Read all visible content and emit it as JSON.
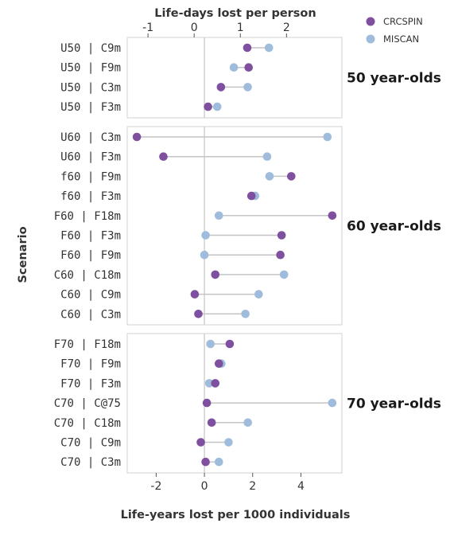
{
  "chart_data": {
    "type": "scatter",
    "top_axis": {
      "label": "Life-days lost per person",
      "ticks": [
        -1,
        0,
        1,
        2
      ],
      "tick_labels": [
        "-1",
        "0",
        "1",
        "2"
      ],
      "range": [
        -1.45,
        3.2
      ]
    },
    "bottom_axis": {
      "label": "Life-years lost per 1000 individuals",
      "ticks": [
        -2,
        0,
        2,
        4
      ],
      "tick_labels": [
        "-2",
        "0",
        "2",
        "4"
      ],
      "range": [
        -3.2,
        5.7
      ]
    },
    "ylabel": "Scenario",
    "legend": [
      {
        "name": "CRCSPIN",
        "color": "#8050a0"
      },
      {
        "name": "MISCAN",
        "color": "#a0bcdc"
      }
    ],
    "legend_position": "top-right",
    "panels": [
      {
        "label": "50 year-olds",
        "axis": "top",
        "rows": [
          {
            "scenario": "U50 | C9m",
            "CRCSPIN": 1.15,
            "MISCAN": 1.62
          },
          {
            "scenario": "U50 | F9m",
            "CRCSPIN": 1.18,
            "MISCAN": 0.86
          },
          {
            "scenario": "U50 | C3m",
            "CRCSPIN": 0.58,
            "MISCAN": 1.16
          },
          {
            "scenario": "U50 | F3m",
            "CRCSPIN": 0.3,
            "MISCAN": 0.5
          }
        ]
      },
      {
        "label": "60 year-olds",
        "axis": "bottom",
        "rows": [
          {
            "scenario": "U60 | C3m",
            "CRCSPIN": -2.8,
            "MISCAN": 5.1
          },
          {
            "scenario": "U60 | F3m",
            "CRCSPIN": -1.7,
            "MISCAN": 2.6
          },
          {
            "scenario": "f60 | F9m",
            "CRCSPIN": 3.6,
            "MISCAN": 2.7
          },
          {
            "scenario": "f60 | F3m",
            "CRCSPIN": 1.95,
            "MISCAN": 2.1
          },
          {
            "scenario": "F60 | F18m",
            "CRCSPIN": 5.3,
            "MISCAN": 0.6
          },
          {
            "scenario": "F60 | F3m",
            "CRCSPIN": 3.2,
            "MISCAN": 0.05
          },
          {
            "scenario": "F60 | F9m",
            "CRCSPIN": 3.15,
            "MISCAN": 0.0
          },
          {
            "scenario": "C60 | C18m",
            "CRCSPIN": 0.45,
            "MISCAN": 3.3
          },
          {
            "scenario": "C60 | C9m",
            "CRCSPIN": -0.4,
            "MISCAN": 2.25
          },
          {
            "scenario": "C60 | C3m",
            "CRCSPIN": -0.25,
            "MISCAN": 1.7
          }
        ]
      },
      {
        "label": "70 year-olds",
        "axis": "bottom",
        "rows": [
          {
            "scenario": "F70 | F18m",
            "CRCSPIN": 1.05,
            "MISCAN": 0.25
          },
          {
            "scenario": "F70 | F9m",
            "CRCSPIN": 0.6,
            "MISCAN": 0.7
          },
          {
            "scenario": "F70 | F3m",
            "CRCSPIN": 0.45,
            "MISCAN": 0.2
          },
          {
            "scenario": "C70 | C@75",
            "CRCSPIN": 0.1,
            "MISCAN": 5.3
          },
          {
            "scenario": "C70 | C18m",
            "CRCSPIN": 0.3,
            "MISCAN": 1.8
          },
          {
            "scenario": "C70 | C9m",
            "CRCSPIN": -0.15,
            "MISCAN": 1.0
          },
          {
            "scenario": "C70 | C3m",
            "CRCSPIN": 0.05,
            "MISCAN": 0.6
          }
        ]
      }
    ]
  }
}
